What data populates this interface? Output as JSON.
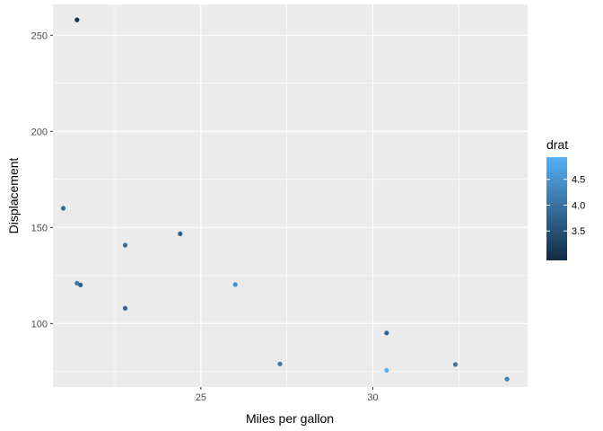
{
  "chart_data": {
    "type": "scatter",
    "title": "",
    "xlabel": "Miles per gallon",
    "ylabel": "Displacement",
    "xlim": [
      20.7,
      34.5
    ],
    "ylim": [
      67,
      266
    ],
    "x_ticks": [
      25,
      30
    ],
    "y_ticks": [
      100,
      150,
      200,
      250
    ],
    "grid": true,
    "color_variable": "drat",
    "color_scale": {
      "low": "#132b43",
      "high": "#56b1f7",
      "range": [
        2.93,
        4.93
      ]
    },
    "legend": {
      "title": "drat",
      "position": "right",
      "labels": [
        3.5,
        4.0,
        4.5
      ]
    },
    "points": [
      {
        "x": 21.0,
        "y": 160.0,
        "drat": 3.9
      },
      {
        "x": 21.0,
        "y": 160.0,
        "drat": 3.9
      },
      {
        "x": 22.8,
        "y": 108.0,
        "drat": 3.85
      },
      {
        "x": 21.4,
        "y": 258.0,
        "drat": 3.08
      },
      {
        "x": 24.4,
        "y": 146.7,
        "drat": 3.69
      },
      {
        "x": 22.8,
        "y": 140.8,
        "drat": 3.92
      },
      {
        "x": 32.4,
        "y": 78.7,
        "drat": 4.08
      },
      {
        "x": 30.4,
        "y": 75.7,
        "drat": 4.93
      },
      {
        "x": 33.9,
        "y": 71.1,
        "drat": 4.22
      },
      {
        "x": 21.5,
        "y": 120.1,
        "drat": 3.7
      },
      {
        "x": 27.3,
        "y": 79.0,
        "drat": 4.08
      },
      {
        "x": 26.0,
        "y": 120.3,
        "drat": 4.43
      },
      {
        "x": 30.4,
        "y": 95.1,
        "drat": 3.77
      },
      {
        "x": 21.4,
        "y": 121.0,
        "drat": 4.11
      }
    ]
  }
}
